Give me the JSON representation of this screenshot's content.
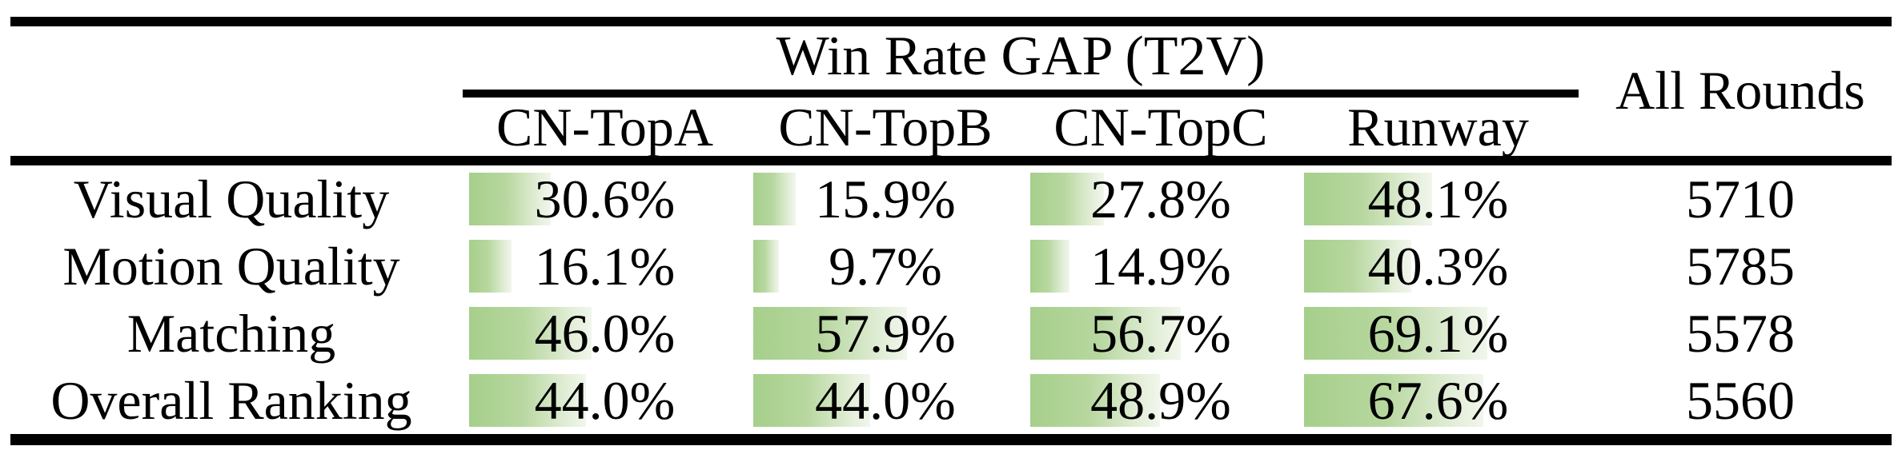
{
  "figure": {
    "group_header": "Win Rate GAP (T2V)",
    "all_rounds_header": "All Rounds",
    "columns": [
      "CN-TopA",
      "CN-TopB",
      "CN-TopC",
      "Runway"
    ],
    "rows": [
      {
        "label": "Visual Quality",
        "cells": [
          {
            "value": 30.6,
            "text": "30.6%"
          },
          {
            "value": 15.9,
            "text": "15.9%"
          },
          {
            "value": 27.8,
            "text": "27.8%"
          },
          {
            "value": 48.1,
            "text": "48.1%"
          }
        ],
        "all_rounds": "5710"
      },
      {
        "label": "Motion Quality",
        "cells": [
          {
            "value": 16.1,
            "text": "16.1%"
          },
          {
            "value": 9.7,
            "text": "9.7%"
          },
          {
            "value": 14.9,
            "text": "14.9%"
          },
          {
            "value": 40.3,
            "text": "40.3%"
          }
        ],
        "all_rounds": "5785"
      },
      {
        "label": "Matching",
        "cells": [
          {
            "value": 46.0,
            "text": "46.0%"
          },
          {
            "value": 57.9,
            "text": "57.9%"
          },
          {
            "value": 56.7,
            "text": "56.7%"
          },
          {
            "value": 69.1,
            "text": "69.1%"
          }
        ],
        "all_rounds": "5578"
      },
      {
        "label": "Overall Ranking",
        "cells": [
          {
            "value": 44.0,
            "text": "44.0%"
          },
          {
            "value": 44.0,
            "text": "44.0%"
          },
          {
            "value": 48.9,
            "text": "48.9%"
          },
          {
            "value": 67.6,
            "text": "67.6%"
          }
        ],
        "all_rounds": "5560"
      }
    ],
    "colors": {
      "bar_gradient_start": "#a6cf8b",
      "bar_gradient_end": "#f1f6ec",
      "rule": "#000000",
      "background": "#ffffff"
    }
  },
  "chart_data": {
    "type": "table",
    "title": "Win Rate GAP (T2V)",
    "column_group_header": "Win Rate GAP (T2V)",
    "columns": [
      "CN-TopA",
      "CN-TopB",
      "CN-TopC",
      "Runway",
      "All Rounds"
    ],
    "row_labels": [
      "Visual Quality",
      "Motion Quality",
      "Matching",
      "Overall Ranking"
    ],
    "series": [
      {
        "name": "CN-TopA",
        "values": [
          30.6,
          16.1,
          46.0,
          44.0
        ],
        "unit": "%"
      },
      {
        "name": "CN-TopB",
        "values": [
          15.9,
          9.7,
          57.9,
          44.0
        ],
        "unit": "%"
      },
      {
        "name": "CN-TopC",
        "values": [
          27.8,
          14.9,
          56.7,
          48.9
        ],
        "unit": "%"
      },
      {
        "name": "Runway",
        "values": [
          48.1,
          40.3,
          69.1,
          67.6
        ],
        "unit": "%"
      },
      {
        "name": "All Rounds",
        "values": [
          5710,
          5785,
          5578,
          5560
        ],
        "unit": "count"
      }
    ],
    "bar_scale": "in-cell data bars proportional to percentage, green gradient",
    "value_range_for_bars": [
      0,
      100
    ]
  }
}
